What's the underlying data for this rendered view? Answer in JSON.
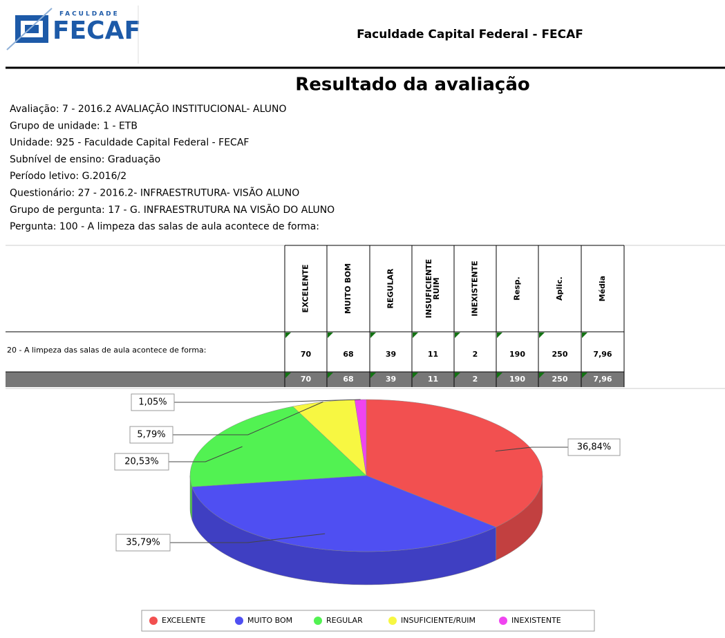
{
  "header": {
    "logo_small": "FACULDADE",
    "logo_big": "FECAF",
    "title": "Faculdade Capital Federal - FECAF"
  },
  "report_title": "Resultado da avaliação",
  "info": [
    "Avaliação: 7 - 2016.2 AVALIAÇÃO INSTITUCIONAL- ALUNO",
    "Grupo de unidade: 1 - ETB",
    "Unidade: 925 - Faculdade Capital Federal - FECAF",
    "Subnível de ensino: Graduação",
    "Período letivo: G.2016/2",
    "Questionário: 27 - 2016.2- INFRAESTRUTURA- VISÃO ALUNO",
    "Grupo de pergunta: 17 - G. INFRAESTRUTURA NA VISÃO DO ALUNO",
    "Pergunta: 100 - A limpeza das salas de aula acontece de forma:"
  ],
  "table": {
    "columns": [
      [
        "EXCELENTE"
      ],
      [
        "MUITO BOM"
      ],
      [
        "REGULAR"
      ],
      [
        "INSUFICIENTE",
        "RUIM"
      ],
      [
        "INEXISTENTE"
      ],
      [
        "Resp."
      ],
      [
        "Aplic."
      ],
      [
        "Média"
      ]
    ],
    "rows": [
      [
        "20 - A limpeza das salas de aula acontece de forma:",
        "70",
        "68",
        "39",
        "11",
        "2",
        "190",
        "250",
        "7,96"
      ]
    ],
    "totals": [
      "70",
      "68",
      "39",
      "11",
      "2",
      "190",
      "250",
      "7,96"
    ]
  },
  "chart_data": {
    "type": "pie",
    "categories": [
      "EXCELENTE",
      "MUITO BOM",
      "REGULAR",
      "INSUFICIENTE/RUIM",
      "INEXISTENTE"
    ],
    "values": [
      36.84,
      35.79,
      20.53,
      5.79,
      1.05
    ],
    "value_labels": [
      "36,84%",
      "35,79%",
      "20,53%",
      "5,79%",
      "1,05%"
    ],
    "colors": [
      "#f25050",
      "#4f4ff2",
      "#52f252",
      "#f7f742",
      "#f044f0"
    ],
    "legend": "bottom"
  }
}
